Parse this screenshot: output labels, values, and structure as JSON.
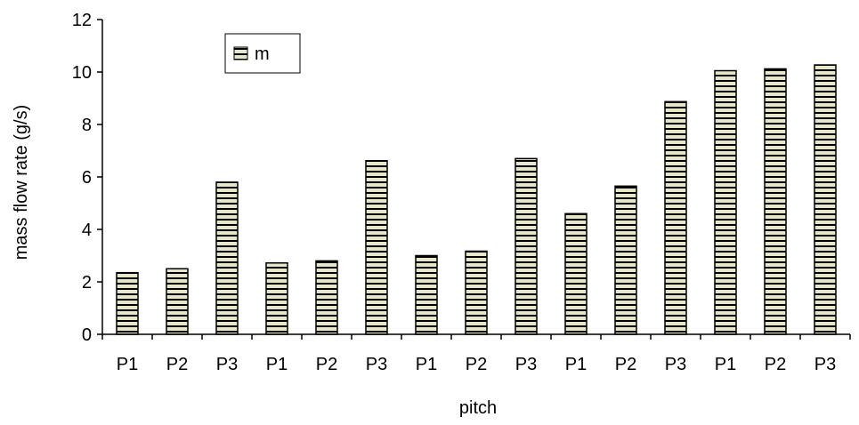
{
  "chart_data": {
    "type": "bar",
    "categories": [
      "P1",
      "P2",
      "P3",
      "P1",
      "P2",
      "P3",
      "P1",
      "P2",
      "P3",
      "P1",
      "P2",
      "P3",
      "P1",
      "P2",
      "P3"
    ],
    "series": [
      {
        "name": "m",
        "values": [
          2.35,
          2.5,
          5.8,
          2.72,
          2.8,
          6.62,
          3.0,
          3.17,
          6.7,
          4.6,
          5.65,
          8.87,
          10.05,
          10.12,
          10.27
        ]
      }
    ],
    "title": "",
    "xlabel": "pitch",
    "ylabel": "mass flow rate (g/s)",
    "ylim": [
      0,
      12
    ],
    "yticks": [
      0,
      2,
      4,
      6,
      8,
      10,
      12
    ],
    "grid": false,
    "legend": "top-left",
    "bar_fill": "#e8e6c9",
    "bar_stripe": "#000000"
  }
}
